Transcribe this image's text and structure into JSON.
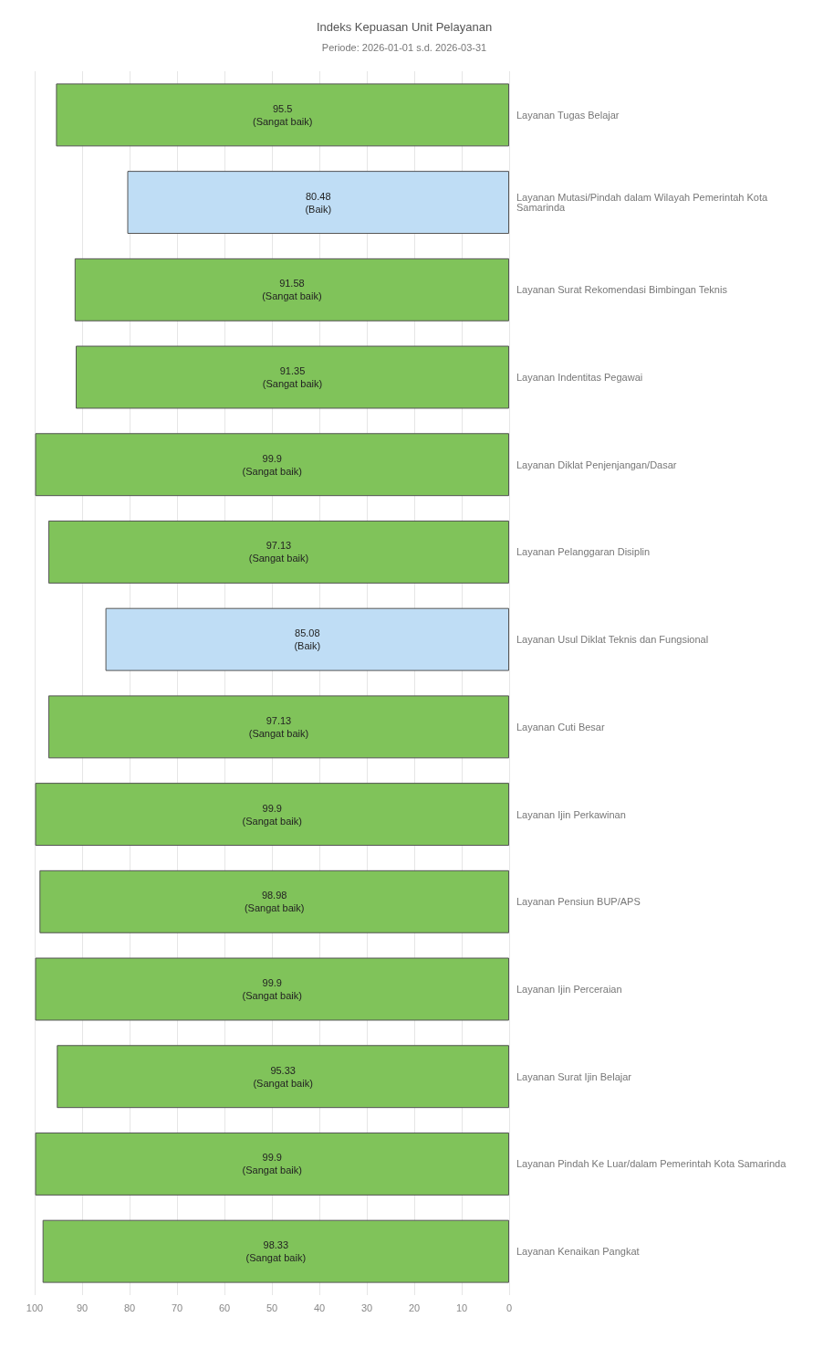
{
  "chart_data": {
    "type": "bar",
    "orientation": "horizontal",
    "title": "Indeks Kepuasan Unit Pelayanan",
    "subtitle": "Periode: 2026-01-01 s.d. 2026-03-31",
    "categories": [
      "Layanan Tugas Belajar",
      "Layanan Mutasi/Pindah dalam Wilayah Pemerintah Kota Samarinda",
      "Layanan Surat Rekomendasi Bimbingan Teknis",
      "Layanan Indentitas Pegawai",
      "Layanan Diklat Penjenjangan/Dasar",
      "Layanan Pelanggaran Disiplin",
      "Layanan Usul Diklat Teknis dan Fungsional",
      "Layanan Cuti Besar",
      "Layanan Ijin Perkawinan",
      "Layanan Pensiun BUP/APS",
      "Layanan Ijin Perceraian",
      "Layanan Surat Ijin Belajar",
      "Layanan Pindah Ke Luar/dalam Pemerintah Kota Samarinda",
      "Layanan Kenaikan Pangkat"
    ],
    "values": [
      95.5,
      80.48,
      91.58,
      91.35,
      99.9,
      97.13,
      85.08,
      97.13,
      99.9,
      98.98,
      99.9,
      95.33,
      99.9,
      98.33
    ],
    "colors": [
      "#80c35a",
      "#bfddf5",
      "#80c35a",
      "#80c35a",
      "#80c35a",
      "#80c35a",
      "#bfddf5",
      "#80c35a",
      "#80c35a",
      "#80c35a",
      "#80c35a",
      "#80c35a",
      "#80c35a",
      "#80c35a"
    ],
    "value_labels": [
      "95.5\n(Sangat baik)",
      "80.48\n(Baik)",
      "91.58\n(Sangat baik)",
      "91.35\n(Sangat baik)",
      "99.9\n(Sangat baik)",
      "97.13\n(Sangat baik)",
      "85.08\n(Baik)",
      "97.13\n(Sangat baik)",
      "99.9\n(Sangat baik)",
      "98.98\n(Sangat baik)",
      "99.9\n(Sangat baik)",
      "95.33\n(Sangat baik)",
      "99.9\n(Sangat baik)",
      "98.33\n(Sangat baik)"
    ],
    "xlim": [
      100,
      0
    ],
    "xticks": [
      100,
      90,
      80,
      70,
      60,
      50,
      40,
      30,
      20,
      10,
      0
    ],
    "grid": "x"
  }
}
